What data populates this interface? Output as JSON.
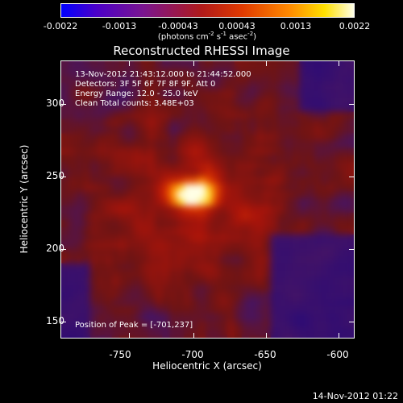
{
  "colorbar": {
    "ticks": [
      "-0.0022",
      "-0.0013",
      "-0.00043",
      "0.00043",
      "0.0013",
      "0.0022"
    ],
    "unit_prefix": "(photons cm",
    "unit_exp1": "-2",
    "unit_mid": " s",
    "unit_exp2": "-1",
    "unit_mid2": " asec",
    "unit_exp3": "-2",
    "unit_suffix": ")"
  },
  "title": "Reconstructed RHESSI Image",
  "info": {
    "time_range": "13-Nov-2012 21:43:12.000 to 21:44:52.000",
    "detectors": "Detectors: 3F 5F 6F 7F 8F 9F, Att 0",
    "energy": "Energy Range: 12.0 - 25.0 keV",
    "algorithm": "Clean     Total counts: 3.48E+03",
    "peak": "Position of Peak = [-701,237]"
  },
  "axes": {
    "xlabel": "Heliocentric X (arcsec)",
    "ylabel": "Heliocentric Y (arcsec)",
    "xticks": [
      "-750",
      "-700",
      "-650",
      "-600"
    ],
    "yticks": [
      "300",
      "250",
      "200",
      "150"
    ]
  },
  "timestamp": "14-Nov-2012 01:22",
  "colors": {
    "low": "#0000ff",
    "mid": "#b01a1a",
    "high": "#ffffe8"
  }
}
